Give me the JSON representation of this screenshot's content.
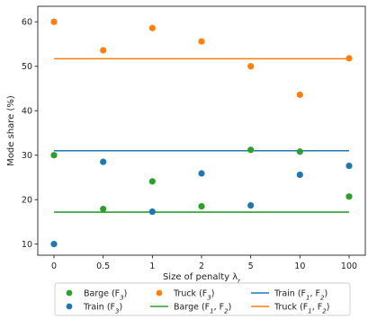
{
  "chart_data": {
    "type": "scatter",
    "xlabel": "Size of penalty λ",
    "xlabel_sub": "r",
    "ylabel": "Mode share (%)",
    "categories": [
      "0",
      "0.5",
      "1",
      "2",
      "5",
      "10",
      "100"
    ],
    "ylim": [
      7.5,
      63.5
    ],
    "yticks": [
      10,
      20,
      30,
      40,
      50,
      60
    ],
    "grid": false,
    "legend_position": "bottom",
    "series": [
      {
        "key": "barge_f3",
        "name": "Barge (F",
        "sub": "3",
        "suffix": ")",
        "kind": "scatter",
        "color": "#2ca02c",
        "values": [
          30.0,
          17.9,
          24.1,
          18.5,
          31.2,
          30.8,
          20.7
        ]
      },
      {
        "key": "train_f3",
        "name": "Train (F",
        "sub": "3",
        "suffix": ")",
        "kind": "scatter",
        "color": "#1f77b4",
        "values": [
          10.0,
          28.5,
          17.3,
          25.9,
          18.7,
          25.6,
          27.6
        ]
      },
      {
        "key": "truck_f3",
        "name": "Truck (F",
        "sub": "3",
        "suffix": ")",
        "kind": "scatter",
        "color": "#ff7f0e",
        "values": [
          60.0,
          53.6,
          58.6,
          55.6,
          50.0,
          43.6,
          51.8
        ]
      },
      {
        "key": "barge_f12",
        "name": "Barge (F",
        "sub": "1",
        "mid": ", F",
        "sub2": "2",
        "suffix": ")",
        "kind": "line",
        "color": "#2ca02c",
        "value": 17.2
      },
      {
        "key": "train_f12",
        "name": "Train (F",
        "sub": "1",
        "mid": ", F",
        "sub2": "2",
        "suffix": ")",
        "kind": "line",
        "color": "#1f77b4",
        "value": 31.0
      },
      {
        "key": "truck_f12",
        "name": "Truck (F",
        "sub": "1",
        "mid": ", F",
        "sub2": "2",
        "suffix": ")",
        "kind": "line",
        "color": "#ff7f0e",
        "value": 51.7
      }
    ],
    "legend_order": [
      "barge_f3",
      "train_f3",
      "truck_f3",
      "barge_f12",
      "train_f12",
      "truck_f12"
    ]
  }
}
